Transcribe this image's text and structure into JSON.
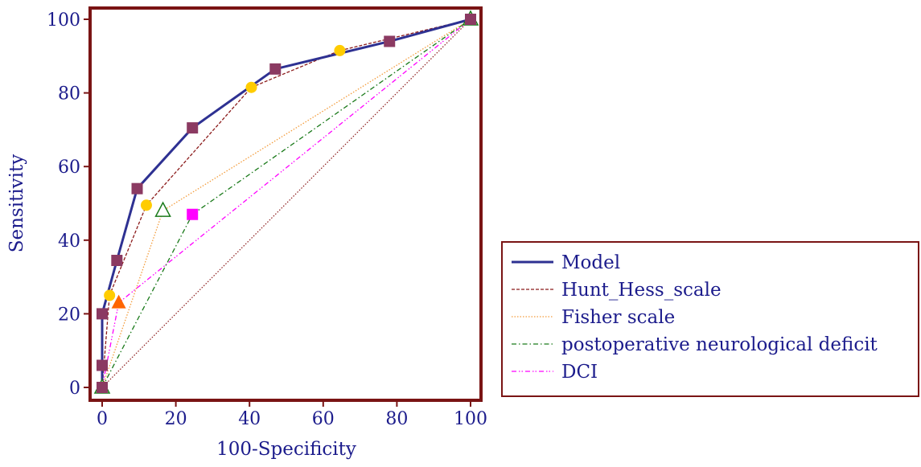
{
  "chart_data": {
    "type": "line",
    "title": "",
    "xlabel": "100-Specificity",
    "ylabel": "Sensitivity",
    "xlim": [
      0,
      100
    ],
    "ylim": [
      0,
      100
    ],
    "xticks": [
      0,
      20,
      40,
      60,
      80,
      100
    ],
    "yticks": [
      0,
      20,
      40,
      60,
      80,
      100
    ],
    "grid": false,
    "legend_position": "right",
    "series": [
      {
        "name": "Model",
        "color": "#2e3192",
        "line_style": "solid",
        "marker": "square",
        "marker_color": "#8b3a62",
        "points": [
          [
            0,
            0
          ],
          [
            0,
            6
          ],
          [
            0,
            20
          ],
          [
            4,
            34.5
          ],
          [
            9.5,
            54
          ],
          [
            24.5,
            70.5
          ],
          [
            47,
            86.5
          ],
          [
            78,
            94
          ],
          [
            100,
            100
          ]
        ]
      },
      {
        "name": "Hunt_Hess_scale",
        "color": "#8b1a1a",
        "line_style": "dashed",
        "marker": "circle",
        "marker_color": "#ffcc00",
        "points": [
          [
            0,
            0
          ],
          [
            2,
            25
          ],
          [
            12,
            49.5
          ],
          [
            40.5,
            81.5
          ],
          [
            64.5,
            91.5
          ],
          [
            100,
            100
          ]
        ]
      },
      {
        "name": "Fisher scale",
        "color": "#f39c3c",
        "line_style": "dotted",
        "marker": "triangle-open",
        "marker_color": "#1a7a1a",
        "points": [
          [
            0,
            0
          ],
          [
            16.5,
            48
          ],
          [
            100,
            100
          ]
        ]
      },
      {
        "name": "postoperative neurological deficit",
        "color": "#1a7a1a",
        "line_style": "dash-dot",
        "marker": "square",
        "marker_color": "#ff00ff",
        "points": [
          [
            0,
            0
          ],
          [
            24.5,
            47
          ],
          [
            100,
            100
          ]
        ]
      },
      {
        "name": "DCI",
        "color": "#ff00ff",
        "line_style": "dash-dot-dot",
        "marker": "triangle",
        "marker_color": "#ff6600",
        "points": [
          [
            0,
            0
          ],
          [
            4.5,
            23
          ],
          [
            100,
            100
          ]
        ]
      }
    ],
    "reference_line": {
      "color": "#8b1a1a",
      "line_style": "dotted",
      "points": [
        [
          0,
          0
        ],
        [
          100,
          100
        ]
      ]
    },
    "frame_color": "#7a1414",
    "text_color": "#1c1c8c"
  }
}
